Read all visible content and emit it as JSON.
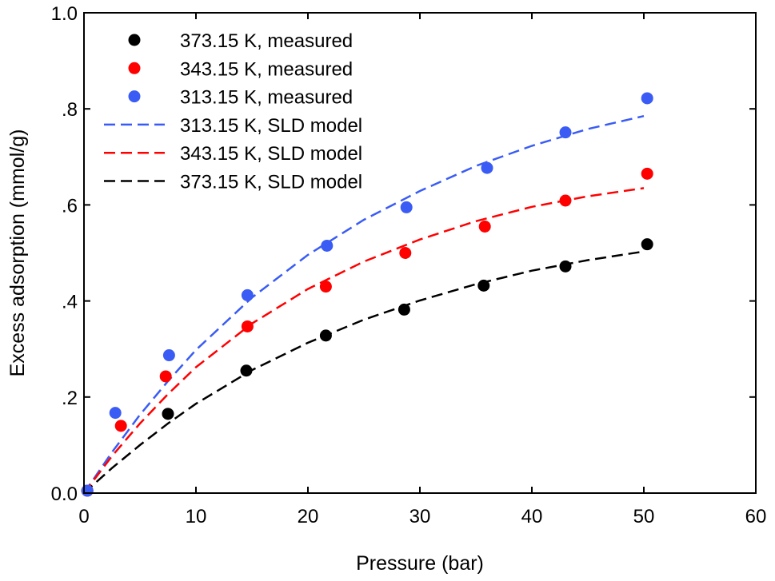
{
  "chart_data": {
    "type": "scatter",
    "title": "",
    "xlabel": "Pressure (bar)",
    "ylabel": "Excess adsorption (mmol/g)",
    "xlim": [
      0,
      60
    ],
    "ylim": [
      0,
      1.0
    ],
    "x_ticks": [
      0,
      10,
      20,
      30,
      40,
      50,
      60
    ],
    "x_tick_labels": [
      "0",
      "10",
      "20",
      "30",
      "40",
      "50",
      "60"
    ],
    "y_ticks": [
      0,
      0.2,
      0.4,
      0.6,
      0.8,
      1.0
    ],
    "y_tick_labels": [
      "0.0",
      ".2",
      ".4",
      ".6",
      ".8",
      "1.0"
    ],
    "grid": false,
    "legend_position": "top-left",
    "series": [
      {
        "name": "373.15 K, measured",
        "kind": "points",
        "color": "#000000",
        "x": [
          0.3,
          7.5,
          14.5,
          21.6,
          28.6,
          35.7,
          43.0,
          50.3
        ],
        "y": [
          0.005,
          0.165,
          0.255,
          0.328,
          0.382,
          0.432,
          0.472,
          0.518
        ]
      },
      {
        "name": "343.15 K, measured",
        "kind": "points",
        "color": "#ff0000",
        "x": [
          0.3,
          3.3,
          7.3,
          14.6,
          21.6,
          28.7,
          35.8,
          43.0,
          50.3
        ],
        "y": [
          0.005,
          0.14,
          0.243,
          0.347,
          0.43,
          0.5,
          0.555,
          0.609,
          0.665
        ]
      },
      {
        "name": "313.15 K, measured",
        "kind": "points",
        "color": "#3a5cf5",
        "x": [
          0.3,
          2.8,
          7.6,
          14.6,
          21.7,
          28.8,
          36.0,
          43.0,
          50.3
        ],
        "y": [
          0.005,
          0.167,
          0.287,
          0.412,
          0.515,
          0.595,
          0.677,
          0.751,
          0.822
        ]
      },
      {
        "name": "313.15 K, SLD model",
        "kind": "line",
        "dash": "dashed",
        "color": "#3a5cf5",
        "x": [
          0,
          2.5,
          5,
          7.5,
          10,
          15,
          20,
          25,
          30,
          35,
          40,
          45,
          50
        ],
        "y": [
          0,
          0.085,
          0.163,
          0.233,
          0.298,
          0.407,
          0.496,
          0.569,
          0.629,
          0.681,
          0.723,
          0.758,
          0.785
        ]
      },
      {
        "name": "343.15 K, SLD model",
        "kind": "line",
        "dash": "dashed",
        "color": "#ff0000",
        "x": [
          0,
          2.5,
          5,
          7.5,
          10,
          15,
          20,
          25,
          30,
          35,
          40,
          45,
          50
        ],
        "y": [
          0,
          0.077,
          0.145,
          0.206,
          0.262,
          0.353,
          0.425,
          0.482,
          0.528,
          0.566,
          0.596,
          0.618,
          0.635
        ]
      },
      {
        "name": "373.15 K, SLD model",
        "kind": "line",
        "dash": "dashed",
        "color": "#000000",
        "x": [
          0,
          2.5,
          5,
          7.5,
          10,
          15,
          20,
          25,
          30,
          35,
          40,
          45,
          50
        ],
        "y": [
          0,
          0.052,
          0.1,
          0.145,
          0.186,
          0.256,
          0.313,
          0.361,
          0.401,
          0.435,
          0.463,
          0.485,
          0.503
        ]
      }
    ]
  }
}
